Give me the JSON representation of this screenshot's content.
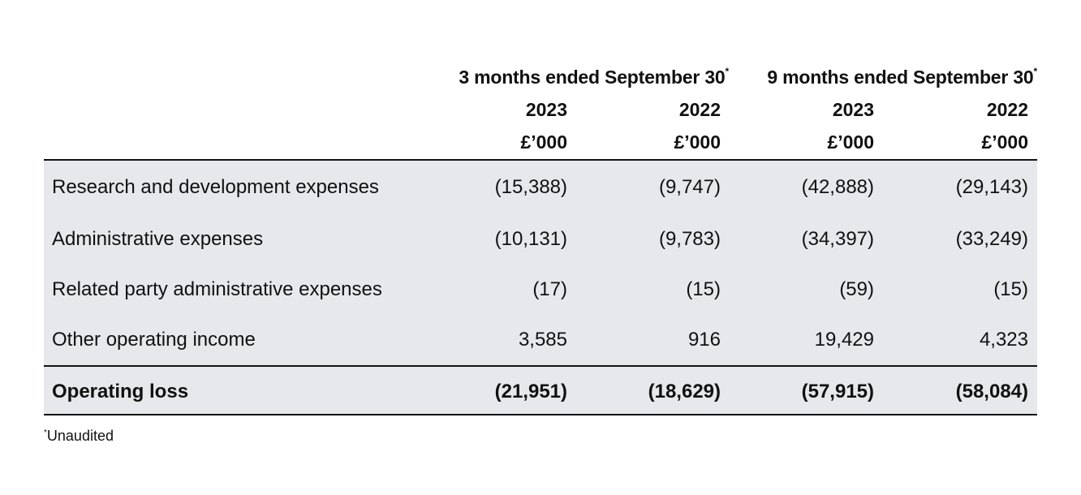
{
  "header": {
    "period_3m": "3 months ended September 30",
    "period_9m": "9 months ended September 30",
    "asterisk": "*",
    "years": [
      "2023",
      "2022",
      "2023",
      "2022"
    ],
    "units": [
      "£’000",
      "£’000",
      "£’000",
      "£’000"
    ]
  },
  "rows": [
    {
      "label": "Research and development expenses",
      "values": [
        "(15,388)",
        "(9,747)",
        "(42,888)",
        "(29,143)"
      ]
    },
    {
      "label": "Administrative expenses",
      "values": [
        "(10,131)",
        "(9,783)",
        "(34,397)",
        "(33,249)"
      ]
    },
    {
      "label": "Related party administrative expenses",
      "values": [
        "(17)",
        "(15)",
        "(59)",
        "(15)"
      ]
    },
    {
      "label": "Other operating income",
      "values": [
        "3,585",
        "916",
        "19,429",
        "4,323"
      ]
    }
  ],
  "total": {
    "label": "Operating loss",
    "values": [
      "(21,951)",
      "(18,629)",
      "(57,915)",
      "(58,084)"
    ]
  },
  "footnote": {
    "marker": "*",
    "text": "Unaudited"
  }
}
